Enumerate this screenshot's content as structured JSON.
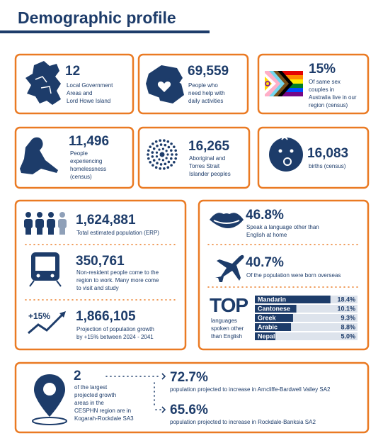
{
  "header": {
    "title": "Demographic profile"
  },
  "stats": [
    {
      "value": "12",
      "lines": [
        "Local Government",
        "Areas and",
        "Lord Howe Island"
      ]
    },
    {
      "value": "69,559",
      "lines": [
        "People who",
        "need help with",
        "daily activities"
      ]
    },
    {
      "value": "15%",
      "lines": [
        "Of same sex",
        "couples in",
        "Australia live in our",
        "region (census)"
      ]
    },
    {
      "value": "11,496",
      "lines": [
        "People",
        "experiencing",
        "homelessness",
        "(census)"
      ]
    },
    {
      "value": "16,265",
      "lines": [
        "Aboriginal and",
        "Torres Strait",
        "Islander peoples"
      ]
    },
    {
      "value": "16,083",
      "lines": [
        "births (census)"
      ]
    }
  ],
  "population": [
    {
      "value": "1,624,881",
      "lines": [
        "Total estimated population (ERP)"
      ]
    },
    {
      "value": "350,761",
      "lines": [
        "Non-resident people come to the",
        "region to work. Many more come",
        "to visit and study"
      ]
    },
    {
      "badge": "+15%",
      "value": "1,866,105",
      "lines": [
        "Projection of population growth",
        "by +15% between 2024 - 2041"
      ]
    }
  ],
  "diversity": [
    {
      "value": "46.8%",
      "lines": [
        "Speak a language other than",
        "English at home"
      ]
    },
    {
      "value": "40.7%",
      "lines": [
        "Of the population were born overseas"
      ]
    }
  ],
  "languages": {
    "heading": "TOP",
    "lines": [
      "languages",
      "spoken other",
      "than English"
    ],
    "names": [
      "Mandarin",
      "Cantonese",
      "Greek",
      "Arabic",
      "Nepali"
    ],
    "values": [
      18.4,
      10.1,
      9.3,
      8.8,
      5.0
    ],
    "value_labels": [
      "18.4%",
      "10.1%",
      "9.3%",
      "8.8%",
      "5.0%"
    ]
  },
  "growth": {
    "value": "2",
    "lines": [
      "of the largest",
      "projected growth",
      "areas in the",
      "CESPHN region are in",
      "Kogarah-Rockdale SA3"
    ],
    "areas": [
      {
        "value": "72.7%",
        "text": "population projected to increase in Arncliffe-Bardwell Valley SA2"
      },
      {
        "value": "65.6%",
        "text": "population projected to increase in Rockdale-Banksia SA2"
      }
    ]
  }
}
